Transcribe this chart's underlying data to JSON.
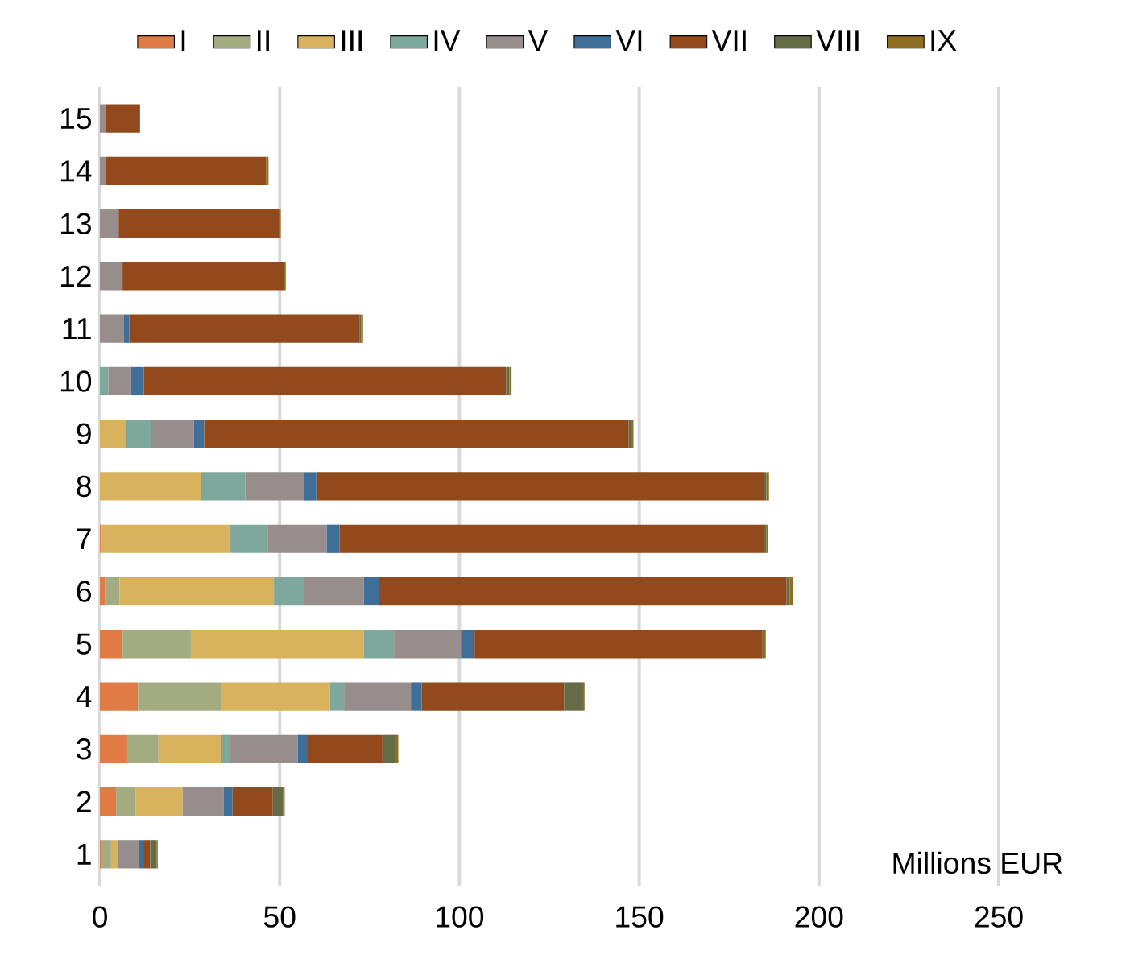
{
  "chart_data": {
    "type": "bar",
    "orientation": "horizontal",
    "stacked": true,
    "categories": [
      "15",
      "14",
      "13",
      "12",
      "11",
      "10",
      "9",
      "8",
      "7",
      "6",
      "5",
      "4",
      "3",
      "2",
      "1"
    ],
    "series": [
      {
        "name": "I",
        "color": "#e07b45",
        "values": [
          null,
          null,
          null,
          null,
          null,
          null,
          null,
          null,
          0.5,
          1.5,
          6.3,
          10.6,
          7.6,
          4.5,
          0.3
        ]
      },
      {
        "name": "II",
        "color": "#a3ab80",
        "values": [
          null,
          null,
          null,
          null,
          null,
          null,
          null,
          null,
          null,
          4.0,
          19.0,
          23.2,
          8.7,
          5.4,
          2.8
        ]
      },
      {
        "name": "III",
        "color": "#d9b25e",
        "values": [
          null,
          null,
          null,
          null,
          null,
          null,
          7.0,
          28.1,
          35.8,
          42.9,
          48.1,
          30.2,
          17.3,
          13.1,
          2.0
        ]
      },
      {
        "name": "IV",
        "color": "#7ea89c",
        "values": [
          null,
          null,
          null,
          null,
          null,
          2.4,
          7.2,
          12.3,
          10.5,
          8.4,
          8.4,
          3.9,
          2.7,
          null,
          null
        ]
      },
      {
        "name": "V",
        "color": "#978d8c",
        "values": [
          1.6,
          1.6,
          5.2,
          6.1,
          6.6,
          6.3,
          11.9,
          16.4,
          16.3,
          16.6,
          18.6,
          18.6,
          18.7,
          11.4,
          5.7
        ]
      },
      {
        "name": "VI",
        "color": "#3f6f99",
        "values": [
          null,
          null,
          null,
          0.2,
          1.6,
          3.5,
          2.9,
          3.4,
          3.6,
          4.3,
          3.8,
          3.0,
          3.0,
          2.5,
          1.3
        ]
      },
      {
        "name": "VII",
        "color": "#924a1c",
        "values": [
          9.2,
          44.6,
          44.7,
          45.0,
          64.1,
          100.8,
          118.1,
          124.6,
          118.1,
          113.3,
          80.1,
          39.6,
          20.6,
          11.2,
          1.9
        ]
      },
      {
        "name": "VIII",
        "color": "#636b47",
        "values": [
          null,
          null,
          null,
          null,
          0.4,
          0.9,
          0.6,
          0.6,
          0.5,
          0.9,
          0.4,
          5.3,
          3.6,
          2.9,
          1.8
        ]
      },
      {
        "name": "IX",
        "color": "#8f6e22",
        "values": [
          0.4,
          0.7,
          0.4,
          0.4,
          0.5,
          0.6,
          0.7,
          0.7,
          0.4,
          0.9,
          0.5,
          0.4,
          0.8,
          0.4,
          0.3
        ]
      }
    ],
    "xlim": [
      0,
      250
    ],
    "xticks": [
      0,
      50,
      100,
      150,
      200,
      250
    ],
    "xlabel": "Millions EUR",
    "grid": "x",
    "legend": "top"
  }
}
